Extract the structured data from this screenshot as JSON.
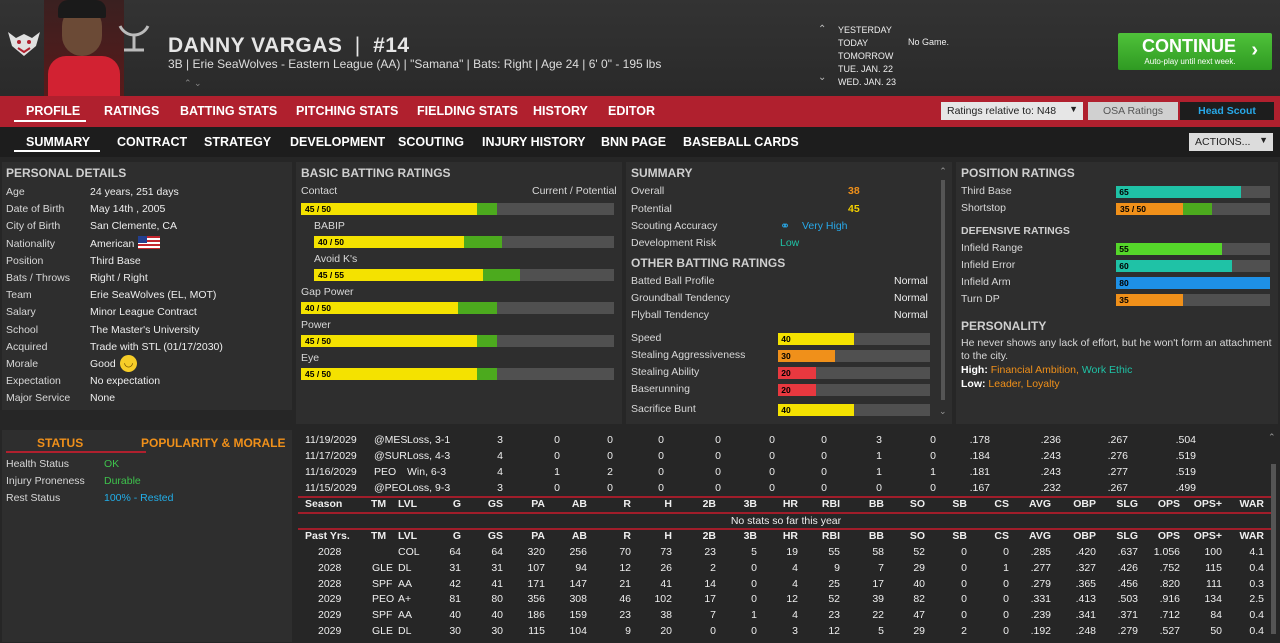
{
  "header": {
    "name": "DANNY VARGAS",
    "separator": "|",
    "number": "#14",
    "info": "3B | Erie SeaWolves - Eastern League (AA)  | \"Samana\" | Bats: Right  |  Age 24  |  6' 0\" - 195 lbs"
  },
  "schedule": {
    "days": [
      "YESTERDAY",
      "TODAY",
      "TOMORROW",
      "TUE. JAN. 22",
      "WED. JAN. 23"
    ],
    "today_text": "No Game."
  },
  "continue": {
    "label": "CONTINUE",
    "sub": "Auto-play until next week."
  },
  "main_tabs": [
    "PROFILE",
    "RATINGS",
    "BATTING STATS",
    "PITCHING STATS",
    "FIELDING STATS",
    "HISTORY",
    "EDITOR"
  ],
  "ratings_relative": "Ratings relative to: N48",
  "osa_label": "OSA Ratings",
  "scout_label": "Head Scout",
  "sub_tabs": [
    "SUMMARY",
    "CONTRACT",
    "STRATEGY",
    "DEVELOPMENT",
    "SCOUTING",
    "INJURY HISTORY",
    "BNN PAGE",
    "BASEBALL CARDS"
  ],
  "actions_label": "ACTIONS...",
  "personal": {
    "title": "PERSONAL DETAILS",
    "rows": [
      [
        "Age",
        "24 years, 251 days"
      ],
      [
        "Date of Birth",
        "May 14th , 2005"
      ],
      [
        "City of Birth",
        "San Clemente, CA"
      ],
      [
        "Nationality",
        "American"
      ],
      [
        "Position",
        "Third Base"
      ],
      [
        "Bats / Throws",
        "Right / Right"
      ],
      [
        "Team",
        "Erie SeaWolves (EL, MOT)"
      ],
      [
        "Salary",
        "Minor League Contract"
      ],
      [
        "School",
        "The Master's University"
      ],
      [
        "Acquired",
        "Trade with STL (01/17/2030)"
      ],
      [
        "Morale",
        "Good"
      ],
      [
        "Expectation",
        "No expectation"
      ],
      [
        "Major Service",
        "None"
      ]
    ]
  },
  "status": {
    "tab1": "STATUS",
    "tab2": "POPULARITY & MORALE",
    "rows": [
      [
        "Health Status",
        "OK",
        "#3ec24c"
      ],
      [
        "Injury Proneness",
        "Durable",
        "#3ec24c"
      ],
      [
        "Rest Status",
        "100% - Rested",
        "#22aee8"
      ]
    ]
  },
  "batting": {
    "title": "BASIC BATTING RATINGS",
    "col1": "Contact",
    "col2": "Current / Potential",
    "rows": [
      {
        "label": "Contact",
        "badge": "45 / 50",
        "cur": 45,
        "pot": 50,
        "indent": false,
        "show_label": false
      },
      {
        "label": "BABIP",
        "badge": "40 / 50",
        "cur": 40,
        "pot": 50,
        "indent": true,
        "show_label": true
      },
      {
        "label": "Avoid K's",
        "badge": "45 / 55",
        "cur": 45,
        "pot": 55,
        "indent": true,
        "show_label": true
      },
      {
        "label": "Gap Power",
        "badge": "40 / 50",
        "cur": 40,
        "pot": 50,
        "indent": false,
        "show_label": true
      },
      {
        "label": "Power",
        "badge": "45 / 50",
        "cur": 45,
        "pot": 50,
        "indent": false,
        "show_label": true
      },
      {
        "label": "Eye",
        "badge": "45 / 50",
        "cur": 45,
        "pot": 50,
        "indent": false,
        "show_label": true
      }
    ]
  },
  "summary": {
    "title": "SUMMARY",
    "overall_label": "Overall",
    "overall": "38",
    "potential_label": "Potential",
    "potential": "45",
    "accuracy_label": "Scouting Accuracy",
    "accuracy": "Very High",
    "risk_label": "Development Risk",
    "risk": "Low",
    "other_title": "OTHER BATTING RATINGS",
    "other": [
      [
        "Batted Ball Profile",
        "Normal"
      ],
      [
        "Groundball Tendency",
        "Normal"
      ],
      [
        "Flyball Tendency",
        "Normal"
      ]
    ],
    "speed": [
      {
        "label": "Speed",
        "v": "40",
        "n": 40,
        "c": "#f4e200"
      },
      {
        "label": "Stealing Aggressiveness",
        "v": "30",
        "n": 30,
        "c": "#f0901a"
      },
      {
        "label": "Stealing Ability",
        "v": "20",
        "n": 20,
        "c": "#e8383f"
      },
      {
        "label": "Baserunning",
        "v": "20",
        "n": 20,
        "c": "#e8383f"
      },
      {
        "label": "Sacrifice Bunt",
        "v": "40",
        "n": 40,
        "c": "#f4e200"
      }
    ]
  },
  "position": {
    "title": "POSITION RATINGS",
    "rows": [
      {
        "label": "Third Base",
        "badge": "65",
        "cur": 65,
        "pot": 0,
        "c": "#1fc2a6"
      },
      {
        "label": "Shortstop",
        "badge": "35 / 50",
        "cur": 35,
        "pot": 50,
        "c": "#f0901a"
      }
    ],
    "def_title": "DEFENSIVE RATINGS",
    "def": [
      {
        "label": "Infield Range",
        "v": "55",
        "n": 55,
        "c": "#55d62a"
      },
      {
        "label": "Infield Error",
        "v": "60",
        "n": 60,
        "c": "#1fc2a6"
      },
      {
        "label": "Infield Arm",
        "v": "80",
        "n": 80,
        "c": "#1e90e6"
      },
      {
        "label": "Turn DP",
        "v": "35",
        "n": 35,
        "c": "#f0901a"
      }
    ]
  },
  "personality": {
    "title": "PERSONALITY",
    "text": "He never shows any lack of effort, but he won't form an attachment to the city.",
    "high_label": "High:",
    "high1": "Financial Ambition",
    "comma": ",",
    "high2": "Work Ethic",
    "low_label": "Low:",
    "low": "Leader, Loyalty"
  },
  "games": [
    [
      "11/19/2029",
      "@MES",
      "Loss, 3-1",
      "3",
      "0",
      "0",
      "0",
      "0",
      "0",
      "0",
      "3",
      "0",
      ".178",
      ".236",
      ".267",
      ".504"
    ],
    [
      "11/17/2029",
      "@SUR",
      "Loss, 4-3",
      "4",
      "0",
      "0",
      "0",
      "0",
      "0",
      "0",
      "1",
      "0",
      ".184",
      ".243",
      ".276",
      ".519"
    ],
    [
      "11/16/2029",
      "PEO",
      "Win, 6-3",
      "4",
      "1",
      "2",
      "0",
      "0",
      "0",
      "0",
      "1",
      "1",
      ".181",
      ".243",
      ".277",
      ".519"
    ],
    [
      "11/15/2029",
      "@PEO",
      "Loss, 9-3",
      "3",
      "0",
      "0",
      "0",
      "0",
      "0",
      "0",
      "0",
      "0",
      ".167",
      ".232",
      ".267",
      ".499"
    ]
  ],
  "season_header": [
    "Season",
    "TM",
    "LVL",
    "G",
    "GS",
    "PA",
    "AB",
    "R",
    "H",
    "2B",
    "3B",
    "HR",
    "RBI",
    "BB",
    "SO",
    "SB",
    "CS",
    "AVG",
    "OBP",
    "SLG",
    "OPS",
    "OPS+",
    "WAR"
  ],
  "no_stats": "No stats so far this year",
  "past_header": [
    "Past Yrs.",
    "TM",
    "LVL",
    "G",
    "GS",
    "PA",
    "AB",
    "R",
    "H",
    "2B",
    "3B",
    "HR",
    "RBI",
    "BB",
    "SO",
    "SB",
    "CS",
    "AVG",
    "OBP",
    "SLG",
    "OPS",
    "OPS+",
    "WAR"
  ],
  "past": [
    [
      "2028",
      "",
      "COL",
      "64",
      "64",
      "320",
      "256",
      "70",
      "73",
      "23",
      "5",
      "19",
      "55",
      "58",
      "52",
      "0",
      "0",
      ".285",
      ".420",
      ".637",
      "1.056",
      "100",
      "4.1"
    ],
    [
      "2028",
      "GLE",
      "DL",
      "31",
      "31",
      "107",
      "94",
      "12",
      "26",
      "2",
      "0",
      "4",
      "9",
      "7",
      "29",
      "0",
      "1",
      ".277",
      ".327",
      ".426",
      ".752",
      "115",
      "0.4"
    ],
    [
      "2028",
      "SPF",
      "AA",
      "42",
      "41",
      "171",
      "147",
      "21",
      "41",
      "14",
      "0",
      "4",
      "25",
      "17",
      "40",
      "0",
      "0",
      ".279",
      ".365",
      ".456",
      ".820",
      "111",
      "0.3"
    ],
    [
      "2029",
      "PEO",
      "A+",
      "81",
      "80",
      "356",
      "308",
      "46",
      "102",
      "17",
      "0",
      "12",
      "52",
      "39",
      "82",
      "0",
      "0",
      ".331",
      ".413",
      ".503",
      ".916",
      "134",
      "2.5"
    ],
    [
      "2029",
      "SPF",
      "AA",
      "40",
      "40",
      "186",
      "159",
      "23",
      "38",
      "7",
      "1",
      "4",
      "23",
      "22",
      "47",
      "0",
      "0",
      ".239",
      ".341",
      ".371",
      ".712",
      "84",
      "0.4"
    ],
    [
      "2029",
      "GLE",
      "DL",
      "30",
      "30",
      "115",
      "104",
      "9",
      "20",
      "0",
      "0",
      "3",
      "12",
      "5",
      "29",
      "2",
      "0",
      ".192",
      ".248",
      ".279",
      ".527",
      "50",
      "0.4"
    ]
  ],
  "colors": {
    "accent": "#b0202e",
    "current": "#f4e200",
    "potential": "#4caa1e"
  }
}
